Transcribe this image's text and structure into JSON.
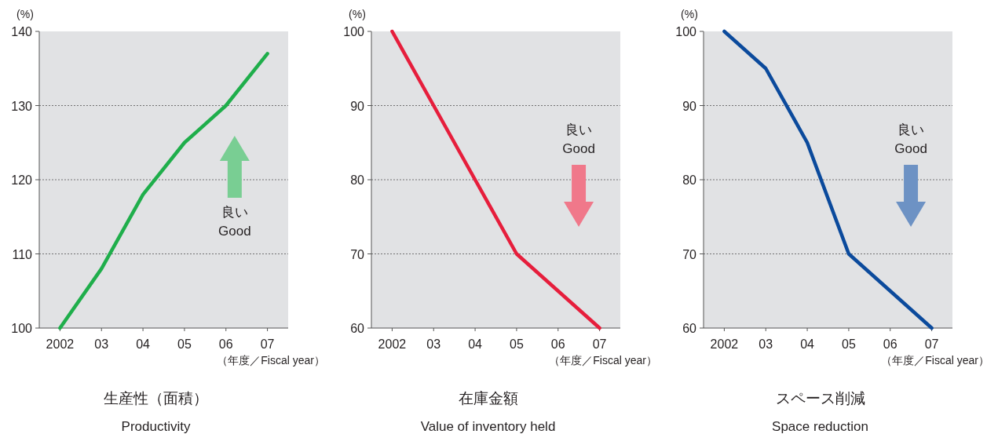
{
  "chart_data": [
    {
      "type": "line",
      "title": "生産性（面積）",
      "subtitle": "Productivity",
      "ylabel": "(%)",
      "xlabel": "（年度／Fiscal year）",
      "categories": [
        "2002",
        "03",
        "04",
        "05",
        "06",
        "07"
      ],
      "series": [
        {
          "color": "#1fae4b",
          "values": [
            100,
            108,
            118,
            125,
            130,
            137
          ]
        }
      ],
      "ylim": [
        100,
        140
      ],
      "yticks": [
        100,
        110,
        120,
        130,
        140
      ],
      "grid": "y",
      "annotations": [
        "良い\nGood"
      ]
    },
    {
      "type": "line",
      "title": "在庫金額",
      "subtitle": "Value of inventory held",
      "ylabel": "(%)",
      "xlabel": "（年度／Fiscal year）",
      "categories": [
        "2002",
        "03",
        "04",
        "05",
        "06",
        "07"
      ],
      "series": [
        {
          "color": "#e61e3c",
          "values": [
            100,
            90,
            80,
            70,
            65,
            60
          ]
        }
      ],
      "ylim": [
        60,
        100
      ],
      "yticks": [
        60,
        70,
        80,
        90,
        100
      ],
      "grid": "y",
      "annotations": [
        "良い\nGood"
      ]
    },
    {
      "type": "line",
      "title": "スペース削減",
      "subtitle": "Space reduction",
      "ylabel": "(%)",
      "xlabel": "（年度／Fiscal year）",
      "categories": [
        "2002",
        "03",
        "04",
        "05",
        "06",
        "07"
      ],
      "series": [
        {
          "color": "#0b4a9c",
          "values": [
            100,
            95,
            85,
            70,
            65,
            60
          ]
        }
      ],
      "ylim": [
        60,
        100
      ],
      "yticks": [
        60,
        70,
        80,
        90,
        100
      ],
      "grid": "y",
      "annotations": [
        "良い\nGood"
      ]
    }
  ]
}
